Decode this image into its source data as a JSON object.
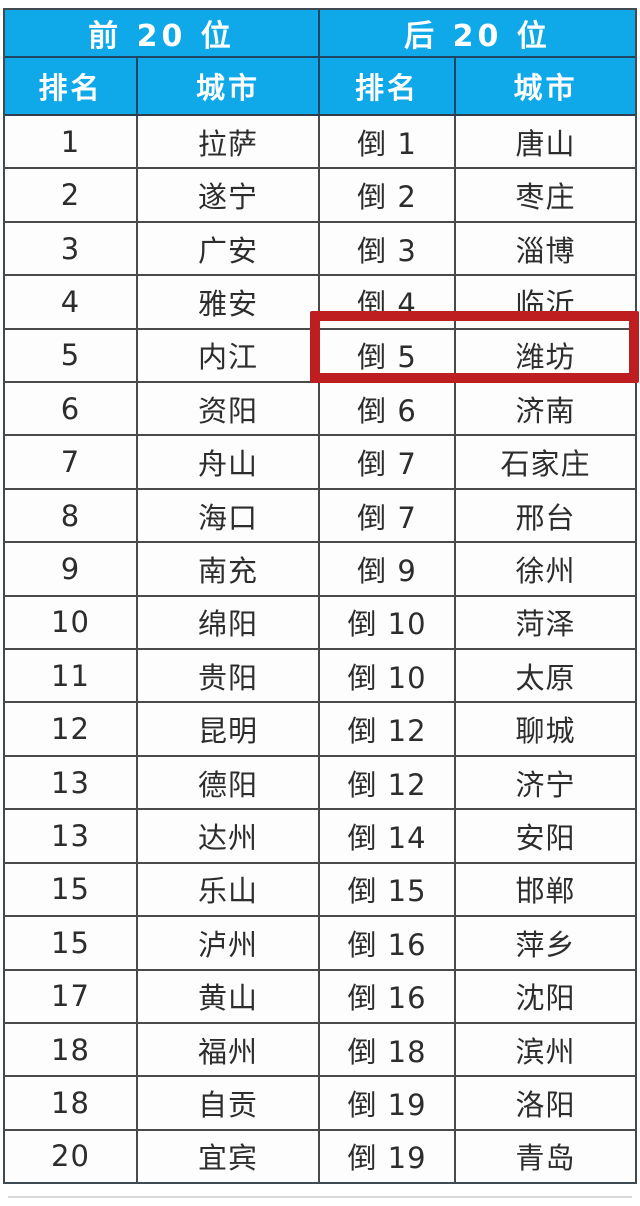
{
  "colors": {
    "header_blue": "#0fa9e9",
    "grid_line": "#4a4a4a",
    "highlight_red": "#be1e20",
    "text_dark": "#2d2d2d",
    "header_text": "#ffffff"
  },
  "chart_data": {
    "type": "table",
    "column_groups": [
      "前 20 位",
      "后 20 位"
    ],
    "columns": [
      "排名",
      "城市",
      "排名",
      "城市"
    ],
    "rows": [
      [
        "1",
        "拉萨",
        "倒 1",
        "唐山"
      ],
      [
        "2",
        "遂宁",
        "倒 2",
        "枣庄"
      ],
      [
        "3",
        "广安",
        "倒 3",
        "淄博"
      ],
      [
        "4",
        "雅安",
        "倒 4",
        "临沂"
      ],
      [
        "5",
        "内江",
        "倒 5",
        "潍坊"
      ],
      [
        "6",
        "资阳",
        "倒 6",
        "济南"
      ],
      [
        "7",
        "舟山",
        "倒 7",
        "石家庄"
      ],
      [
        "8",
        "海口",
        "倒 7",
        "邢台"
      ],
      [
        "9",
        "南充",
        "倒 9",
        "徐州"
      ],
      [
        "10",
        "绵阳",
        "倒 10",
        "菏泽"
      ],
      [
        "11",
        "贵阳",
        "倒 10",
        "太原"
      ],
      [
        "12",
        "昆明",
        "倒 12",
        "聊城"
      ],
      [
        "13",
        "德阳",
        "倒 12",
        "济宁"
      ],
      [
        "13",
        "达州",
        "倒 14",
        "安阳"
      ],
      [
        "15",
        "乐山",
        "倒 15",
        "邯郸"
      ],
      [
        "15",
        "泸州",
        "倒 16",
        "萍乡"
      ],
      [
        "17",
        "黄山",
        "倒 16",
        "沈阳"
      ],
      [
        "18",
        "福州",
        "倒 18",
        "滨州"
      ],
      [
        "18",
        "自贡",
        "倒 19",
        "洛阳"
      ],
      [
        "20",
        "宜宾",
        "倒 19",
        "青岛"
      ]
    ],
    "highlight": {
      "row_index": 4,
      "highlighted_values": [
        "倒 5",
        "潍坊"
      ],
      "style": "red-box-around-bottom-rank-5"
    },
    "legend_position": "none",
    "grid": true
  }
}
